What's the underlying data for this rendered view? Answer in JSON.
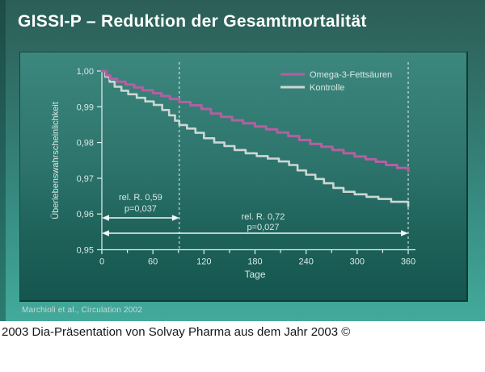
{
  "slide": {
    "title": "GISSI-P – Reduktion der Gesamtmortalität",
    "citation": "Marchioli et al., Circulation 2002",
    "footer": "2003 Dia-Präsentation von Solvay Pharma aus dem Jahr 2003 ©"
  },
  "colors": {
    "axis": "#e7f2ef",
    "tick_text": "#d9e9e6",
    "dashed_line": "#e9f5f2",
    "arrow": "#f0f8f6",
    "omega3": "#b45fa0",
    "kontrolle": "#ccd7d4"
  },
  "chart_data": {
    "type": "line",
    "title": "",
    "xlabel": "Tage",
    "ylabel": "Überlebenswahrscheinlichkeit",
    "xlim": [
      0,
      360
    ],
    "ylim": [
      0.95,
      1.0
    ],
    "grid": false,
    "legend_position": "top-right",
    "x_major_ticks": [
      0,
      60,
      120,
      180,
      240,
      300,
      360
    ],
    "x_minor_step": 30,
    "y_ticks": [
      "1,00",
      "0,99",
      "0,98",
      "0,97",
      "0,96",
      "0,95"
    ],
    "y_tick_values": [
      1.0,
      0.99,
      0.98,
      0.97,
      0.96,
      0.95
    ],
    "dashed_lines_x": [
      91,
      360
    ],
    "legend": [
      {
        "label": "Omega-3-Fettsäuren",
        "color": "#b45fa0"
      },
      {
        "label": "Kontrolle",
        "color": "#ccd7d4"
      }
    ],
    "annotations": [
      {
        "line1": "rel. R. 0,59",
        "line2": "p=0,037",
        "arrow_from_day": 0,
        "arrow_to_day": 91
      },
      {
        "line1": "rel. R. 0,72",
        "line2": "p=0,027",
        "arrow_from_day": 0,
        "arrow_to_day": 360
      }
    ],
    "series": [
      {
        "name": "Omega-3-Fettsäuren",
        "color": "#b45fa0",
        "width": 3,
        "points": [
          [
            0,
            1.0
          ],
          [
            5,
            0.9988
          ],
          [
            10,
            0.9978
          ],
          [
            18,
            0.997
          ],
          [
            28,
            0.9962
          ],
          [
            38,
            0.9954
          ],
          [
            48,
            0.9946
          ],
          [
            60,
            0.9938
          ],
          [
            70,
            0.993
          ],
          [
            80,
            0.9922
          ],
          [
            91,
            0.9913
          ],
          [
            104,
            0.9904
          ],
          [
            117,
            0.9894
          ],
          [
            128,
            0.9881
          ],
          [
            140,
            0.9872
          ],
          [
            153,
            0.9862
          ],
          [
            166,
            0.9854
          ],
          [
            180,
            0.9845
          ],
          [
            193,
            0.9837
          ],
          [
            206,
            0.9828
          ],
          [
            219,
            0.9818
          ],
          [
            232,
            0.9807
          ],
          [
            245,
            0.9796
          ],
          [
            258,
            0.9788
          ],
          [
            271,
            0.9779
          ],
          [
            284,
            0.977
          ],
          [
            297,
            0.9761
          ],
          [
            310,
            0.9753
          ],
          [
            322,
            0.9746
          ],
          [
            334,
            0.9737
          ],
          [
            347,
            0.9729
          ],
          [
            360,
            0.972
          ]
        ]
      },
      {
        "name": "Kontrolle",
        "color": "#ccd7d4",
        "width": 2.6,
        "points": [
          [
            0,
            1.0
          ],
          [
            4,
            0.9984
          ],
          [
            9,
            0.997
          ],
          [
            15,
            0.9956
          ],
          [
            23,
            0.9945
          ],
          [
            31,
            0.9935
          ],
          [
            41,
            0.9925
          ],
          [
            51,
            0.9915
          ],
          [
            61,
            0.9905
          ],
          [
            71,
            0.9891
          ],
          [
            79,
            0.9876
          ],
          [
            86,
            0.9861
          ],
          [
            91,
            0.9849
          ],
          [
            100,
            0.9839
          ],
          [
            110,
            0.9827
          ],
          [
            120,
            0.9812
          ],
          [
            132,
            0.98
          ],
          [
            144,
            0.979
          ],
          [
            156,
            0.9779
          ],
          [
            169,
            0.977
          ],
          [
            182,
            0.9762
          ],
          [
            195,
            0.9755
          ],
          [
            208,
            0.9747
          ],
          [
            220,
            0.9737
          ],
          [
            230,
            0.9722
          ],
          [
            240,
            0.971
          ],
          [
            251,
            0.9698
          ],
          [
            261,
            0.9686
          ],
          [
            272,
            0.9673
          ],
          [
            284,
            0.9662
          ],
          [
            297,
            0.9655
          ],
          [
            311,
            0.9648
          ],
          [
            325,
            0.9642
          ],
          [
            340,
            0.9634
          ],
          [
            360,
            0.9622
          ]
        ]
      }
    ]
  }
}
